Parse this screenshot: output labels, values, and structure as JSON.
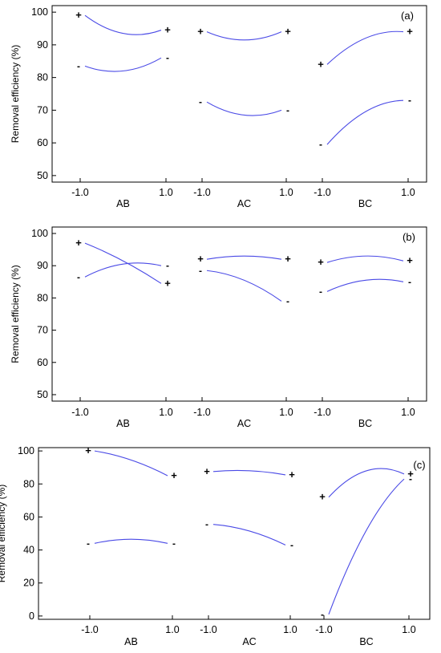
{
  "colors": {
    "curve": "#4a4ae6",
    "axis": "#000000",
    "marker": "#000000",
    "background": "#ffffff"
  },
  "chart_data": [
    {
      "type": "line",
      "panel_label": "(a)",
      "ylabel": "Removal efficiency (%)",
      "ylim": [
        48,
        102
      ],
      "yticks": [
        "50",
        "60",
        "70",
        "80",
        "90",
        "100"
      ],
      "groups": [
        {
          "name": "AB",
          "xticks": [
            "-1.0",
            "1.0"
          ],
          "curves": [
            {
              "level": "+",
              "start": 99,
              "mid": 93.5,
              "end": 94.5
            },
            {
              "level": "-",
              "start": 83.5,
              "mid": 82,
              "end": 86
            }
          ]
        },
        {
          "name": "AC",
          "xticks": [
            "-1.0",
            "1.0"
          ],
          "curves": [
            {
              "level": "+",
              "start": 94,
              "mid": 91.5,
              "end": 94
            },
            {
              "level": "-",
              "start": 72.5,
              "mid": 68.5,
              "end": 70
            }
          ]
        },
        {
          "name": "BC",
          "xticks": [
            "-1.0",
            "1.0"
          ],
          "curves": [
            {
              "level": "+",
              "start": 84,
              "mid": 92,
              "end": 94
            },
            {
              "level": "-",
              "start": 59.5,
              "mid": 69.5,
              "end": 73
            }
          ]
        }
      ]
    },
    {
      "type": "line",
      "panel_label": "(b)",
      "ylabel": "Removal efficiency (%)",
      "ylim": [
        48,
        102
      ],
      "yticks": [
        "50",
        "60",
        "70",
        "80",
        "90",
        "100"
      ],
      "groups": [
        {
          "name": "AB",
          "xticks": [
            "-1.0",
            "1.0"
          ],
          "curves": [
            {
              "level": "+",
              "start": 97,
              "mid": 91.5,
              "end": 84.5
            },
            {
              "level": "-",
              "start": 86.5,
              "mid": 90.5,
              "end": 90
            }
          ]
        },
        {
          "name": "AC",
          "xticks": [
            "-1.0",
            "1.0"
          ],
          "curves": [
            {
              "level": "+",
              "start": 92,
              "mid": 93,
              "end": 92
            },
            {
              "level": "-",
              "start": 88.5,
              "mid": 85.5,
              "end": 79
            }
          ]
        },
        {
          "name": "BC",
          "xticks": [
            "-1.0",
            "1.0"
          ],
          "curves": [
            {
              "level": "+",
              "start": 91,
              "mid": 93,
              "end": 91.5
            },
            {
              "level": "-",
              "start": 82,
              "mid": 85.5,
              "end": 85
            }
          ]
        }
      ]
    },
    {
      "type": "line",
      "panel_label": "(c)",
      "ylabel": "Removal efficiency (%)",
      "ylim": [
        -2,
        102
      ],
      "yticks": [
        "0",
        "20",
        "40",
        "60",
        "80",
        "100"
      ],
      "groups": [
        {
          "name": "AB",
          "xticks": [
            "-1.0",
            "1.0"
          ],
          "curves": [
            {
              "level": "+",
              "start": 100,
              "mid": 94.5,
              "end": 85
            },
            {
              "level": "-",
              "start": 44,
              "mid": 46.5,
              "end": 44
            }
          ]
        },
        {
          "name": "AC",
          "xticks": [
            "-1.0",
            "1.0"
          ],
          "curves": [
            {
              "level": "+",
              "start": 87.5,
              "mid": 88,
              "end": 85.5
            },
            {
              "level": "-",
              "start": 55.5,
              "mid": 51.5,
              "end": 43
            }
          ]
        },
        {
          "name": "BC",
          "xticks": [
            "-1.0",
            "1.0"
          ],
          "curves": [
            {
              "level": "+",
              "start": 72,
              "mid": 88,
              "end": 86
            },
            {
              "level": "-",
              "start": 1,
              "mid": 52,
              "end": 83
            }
          ]
        }
      ]
    }
  ]
}
